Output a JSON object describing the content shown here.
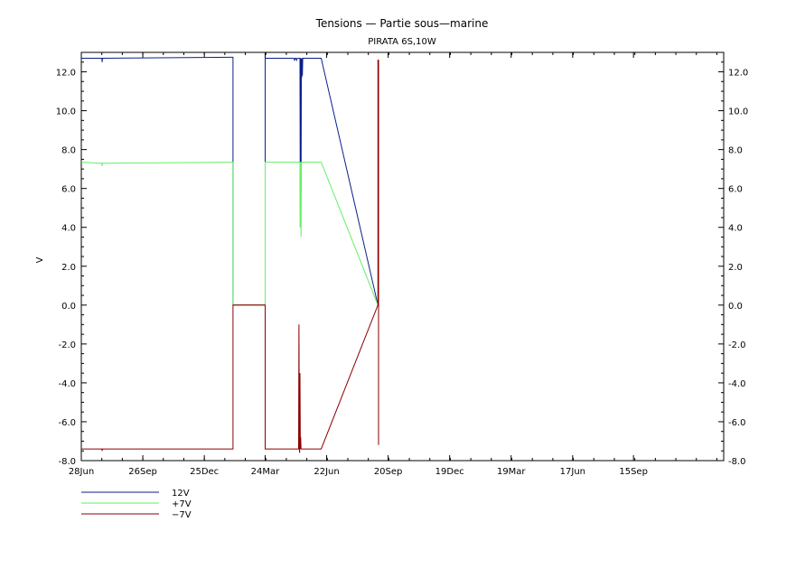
{
  "chart_data": {
    "type": "line",
    "title": "Tensions — Partie sous—marine",
    "subtitle": "PIRATA 6S,10W",
    "ylabel": "V",
    "ylim": [
      -8.0,
      13.0
    ],
    "y_ticks": [
      "12.0",
      "10.0",
      "8.0",
      "6.0",
      "4.0",
      "2.0",
      "0.0",
      "-2.0",
      "-4.0",
      "-6.0",
      "-8.0"
    ],
    "y_tick_values": [
      12,
      10,
      8,
      6,
      4,
      2,
      0,
      -2,
      -4,
      -6,
      -8
    ],
    "right_y_ticks": [
      "12.0",
      "10.0",
      "8.0",
      "6.0",
      "4.0",
      "2.0",
      "0.0",
      "-2.0",
      "-4.0",
      "-6.0",
      "-8.0"
    ],
    "x_ticks": [
      "28Jun",
      "26Sep",
      "25Dec",
      "24Mar",
      "22Jun",
      "20Sep",
      "19Dec",
      "19Mar",
      "17Jun",
      "15Sep"
    ],
    "x_tick_days": [
      0,
      90,
      180,
      269,
      359,
      449,
      539,
      629,
      719,
      808
    ],
    "x_range_days": [
      0,
      940
    ],
    "grid": false,
    "legend_placement": "bottom-left",
    "series": [
      {
        "name": "12V",
        "color": "#0b1f8a",
        "x_days": [
          0,
          30,
          30.5,
          31,
          222,
          222,
          269,
          269,
          310,
          311,
          312,
          313,
          314,
          315,
          316,
          317,
          318,
          319,
          320,
          320.5,
          321,
          321.5,
          322,
          322.5,
          323,
          323.5,
          324,
          324.5,
          351,
          434
        ],
        "y": [
          12.7,
          12.7,
          12.5,
          12.7,
          12.75,
          0.0,
          0.0,
          12.7,
          12.7,
          12.7,
          12.6,
          12.7,
          12.7,
          12.6,
          12.7,
          12.7,
          12.7,
          12.7,
          12.7,
          4.0,
          12.7,
          6.0,
          12.7,
          11.7,
          12.7,
          11.8,
          12.7,
          12.7,
          12.7,
          0.0
        ]
      },
      {
        "name": "+7V",
        "color": "#66ee66",
        "x_days": [
          0,
          30,
          30.5,
          31,
          222,
          222,
          269,
          269,
          320,
          320.5,
          321,
          321.5,
          322,
          351,
          434
        ],
        "y": [
          7.35,
          7.3,
          7.15,
          7.3,
          7.35,
          0.0,
          0.0,
          7.35,
          7.35,
          4.0,
          7.35,
          3.5,
          7.35,
          7.35,
          0.0
        ]
      },
      {
        "name": "−7V",
        "color": "#8b0000",
        "x_days": [
          0,
          30,
          30.5,
          31,
          222,
          222,
          269,
          269,
          318,
          318.5,
          319,
          319.5,
          320,
          320.5,
          321,
          321.5,
          322,
          351,
          434,
          434,
          435,
          435
        ],
        "y": [
          -7.4,
          -7.4,
          -7.5,
          -7.4,
          -7.4,
          0.0,
          0.0,
          -7.4,
          -7.4,
          -1.0,
          -7.4,
          -7.6,
          -3.5,
          -7.4,
          -6.8,
          -7.4,
          -7.4,
          -7.4,
          0.0,
          12.6,
          12.6,
          -7.2
        ]
      }
    ]
  }
}
